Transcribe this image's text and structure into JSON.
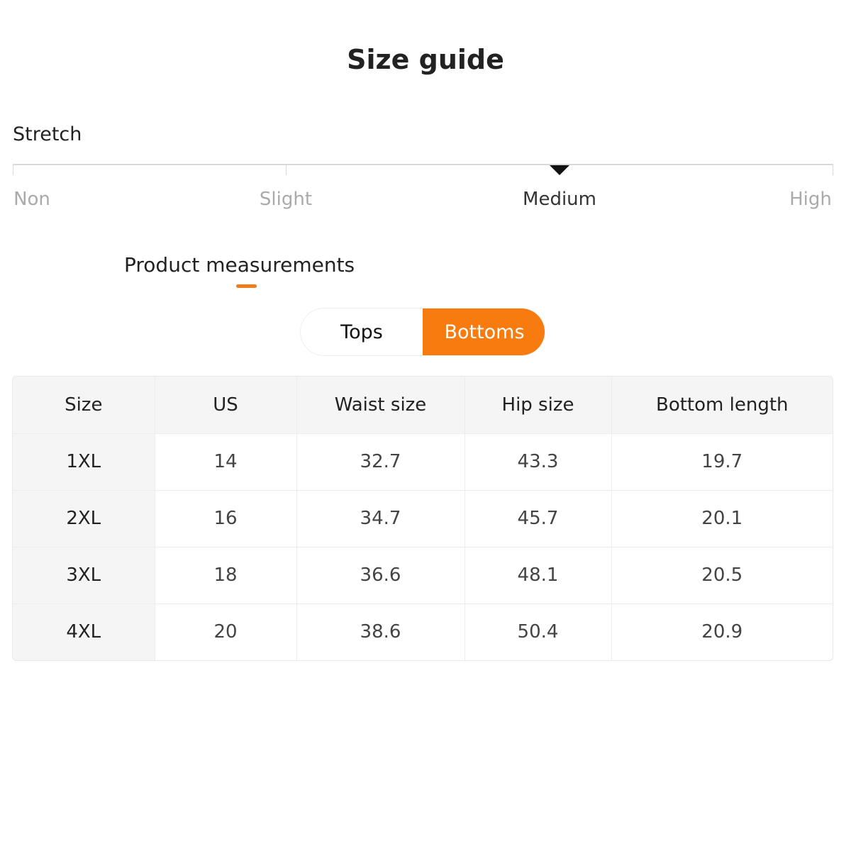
{
  "title": "Size guide",
  "stretch": {
    "label": "Stretch",
    "levels": [
      "Non",
      "Slight",
      "Medium",
      "High"
    ],
    "selected": "Medium"
  },
  "section_title": "Product measurements",
  "toggle": {
    "tops": "Tops",
    "bottoms": "Bottoms",
    "active": "Bottoms"
  },
  "colors": {
    "accent": "#f77b0e"
  },
  "table": {
    "headers": [
      "Size",
      "US",
      "Waist size",
      "Hip size",
      "Bottom length"
    ],
    "rows": [
      [
        "1XL",
        "14",
        "32.7",
        "43.3",
        "19.7"
      ],
      [
        "2XL",
        "16",
        "34.7",
        "45.7",
        "20.1"
      ],
      [
        "3XL",
        "18",
        "36.6",
        "48.1",
        "20.5"
      ],
      [
        "4XL",
        "20",
        "38.6",
        "50.4",
        "20.9"
      ]
    ]
  }
}
